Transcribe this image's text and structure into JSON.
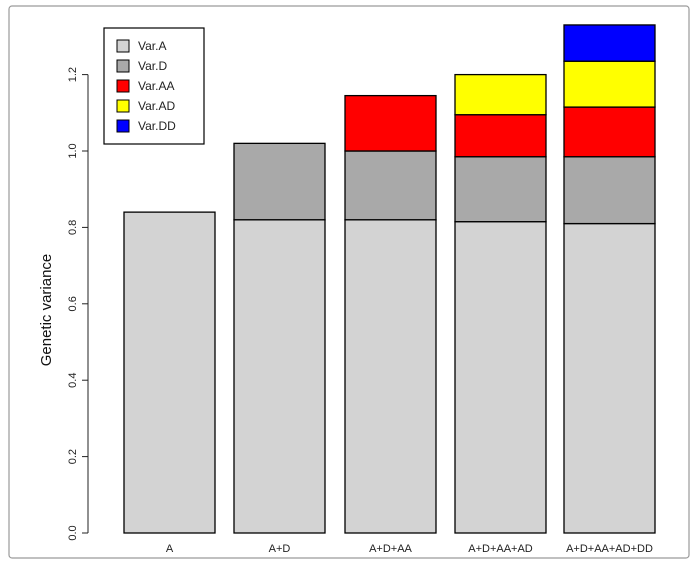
{
  "chart_data": {
    "type": "bar",
    "stacked": true,
    "categories": [
      "A",
      "A+D",
      "A+D+AA",
      "A+D+AA+AD",
      "A+D+AA+AD+DD"
    ],
    "series": [
      {
        "name": "Var.A",
        "color": "#d3d3d3",
        "values": [
          0.84,
          0.82,
          0.82,
          0.815,
          0.81
        ]
      },
      {
        "name": "Var.D",
        "color": "#a9a9a9",
        "values": [
          0,
          0.2,
          0.18,
          0.17,
          0.175
        ]
      },
      {
        "name": "Var.AA",
        "color": "#ff0000",
        "values": [
          0,
          0,
          0.145,
          0.11,
          0.13
        ]
      },
      {
        "name": "Var.AD",
        "color": "#ffff00",
        "values": [
          0,
          0,
          0,
          0.105,
          0.12
        ]
      },
      {
        "name": "Var.DD",
        "color": "#0000ff",
        "values": [
          0,
          0,
          0,
          0,
          0.095
        ]
      }
    ],
    "ylabel": "Genetic variance",
    "xlabel": "",
    "title": "",
    "ylim": [
      0,
      1.32
    ],
    "yticks": [
      "0.0",
      "0.2",
      "0.4",
      "0.6",
      "0.8",
      "1.0",
      "1.2"
    ],
    "legend_position": "top-left",
    "grid": false
  }
}
